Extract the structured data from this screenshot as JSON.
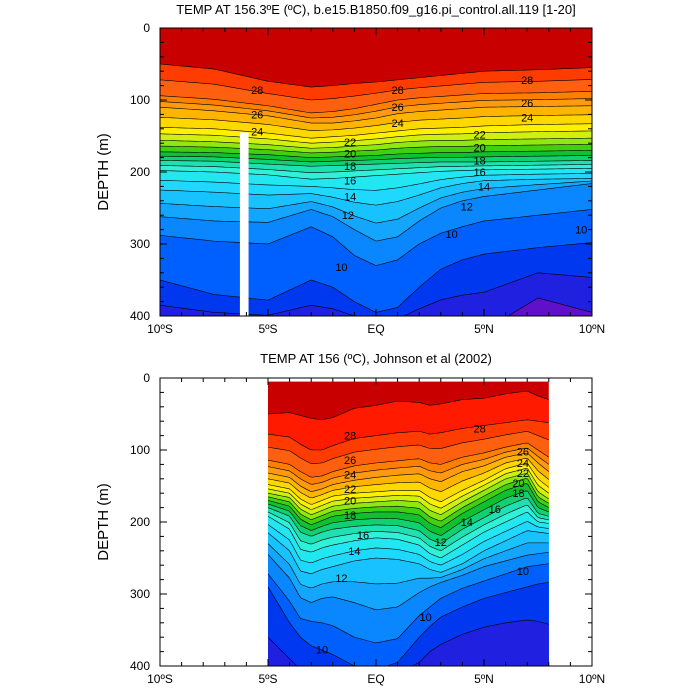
{
  "chart_data": [
    {
      "type": "contour",
      "title": "TEMP AT 156.3ºE (ºC), b.e15.B1850.f09_g16.pi_control.all.119 [1-20]",
      "ylabel": "DEPTH (m)",
      "xlim": [
        -10,
        10
      ],
      "ylim": [
        400,
        0
      ],
      "x_ticks": [
        {
          "value": -10,
          "label": "10ºS"
        },
        {
          "value": -5,
          "label": "5ºS"
        },
        {
          "value": 0,
          "label": "EQ"
        },
        {
          "value": 5,
          "label": "5ºN"
        },
        {
          "value": 10,
          "label": "10ºN"
        }
      ],
      "y_ticks": [
        {
          "value": 0,
          "label": "0"
        },
        {
          "value": 100,
          "label": "100"
        },
        {
          "value": 200,
          "label": "200"
        },
        {
          "value": 300,
          "label": "300"
        },
        {
          "value": 400,
          "label": "400"
        }
      ],
      "data_xrange": [
        -10,
        10
      ],
      "missing_strip": {
        "x": [
          -6.3,
          -5.9
        ],
        "depth": [
          145,
          400
        ]
      },
      "contour_levels": [
        4,
        5,
        6,
        7,
        8,
        9,
        10,
        11,
        12,
        13,
        14,
        15,
        16,
        17,
        18,
        19,
        20,
        21,
        22,
        23,
        24,
        25,
        26,
        27,
        28,
        29
      ],
      "isotherm_depths": {
        "x": [
          -10,
          -7.5,
          -5,
          -3,
          -2,
          -1,
          0,
          1,
          2,
          3,
          4,
          5,
          7.5,
          10
        ],
        "28": [
          50,
          57,
          74,
          82,
          80,
          77,
          75,
          72,
          69,
          66,
          63,
          60,
          58,
          55
        ],
        "26": [
          94,
          99,
          108,
          118,
          116,
          112,
          106,
          100,
          97,
          95,
          93,
          91,
          90,
          88
        ],
        "24": [
          110,
          115,
          122,
          132,
          132,
          129,
          125,
          119,
          116,
          114,
          112,
          110,
          109,
          108
        ],
        "22": [
          138,
          140,
          146,
          153,
          151,
          149,
          146,
          143,
          140,
          139,
          138,
          136,
          134,
          133
        ],
        "20": [
          156,
          158,
          162,
          167,
          166,
          164,
          162,
          159,
          157,
          156,
          156,
          155,
          154,
          153
        ],
        "18": [
          172,
          173,
          176,
          180,
          179,
          178,
          177,
          175,
          174,
          173,
          173,
          172,
          171,
          170
        ],
        "16": [
          184,
          185,
          189,
          192,
          191,
          190,
          189,
          188,
          187,
          186,
          186,
          186,
          185,
          184
        ],
        "14": [
          198,
          200,
          204,
          210,
          209,
          207,
          205,
          203,
          201,
          199,
          198,
          197,
          196,
          195
        ],
        "12": [
          225,
          228,
          232,
          230,
          235,
          242,
          246,
          241,
          232,
          222,
          216,
          212,
          210,
          209
        ],
        "10": [
          262,
          268,
          270,
          252,
          262,
          280,
          296,
          290,
          268,
          250,
          240,
          234,
          225,
          216
        ],
        "9": [
          288,
          296,
          300,
          276,
          290,
          316,
          330,
          322,
          300,
          285,
          276,
          268,
          260,
          252
        ],
        "8": [
          350,
          370,
          378,
          350,
          360,
          380,
          395,
          388,
          360,
          335,
          322,
          314,
          305,
          298
        ],
        "6": [
          420,
          420,
          420,
          420,
          420,
          420,
          420,
          420,
          420,
          420,
          420,
          420,
          375,
          395
        ]
      },
      "contour_labels": [
        {
          "x": -5.5,
          "depth": 86,
          "text": "28"
        },
        {
          "x": 1.0,
          "depth": 86,
          "text": "28"
        },
        {
          "x": 7.0,
          "depth": 72,
          "text": "28"
        },
        {
          "x": -5.5,
          "depth": 120,
          "text": "26"
        },
        {
          "x": 1.0,
          "depth": 110,
          "text": "26"
        },
        {
          "x": 7.0,
          "depth": 104,
          "text": "26"
        },
        {
          "x": -5.5,
          "depth": 144,
          "text": "24"
        },
        {
          "x": 1.0,
          "depth": 132,
          "text": "24"
        },
        {
          "x": 7.0,
          "depth": 124,
          "text": "24"
        },
        {
          "x": -1.2,
          "depth": 158,
          "text": "22"
        },
        {
          "x": 4.8,
          "depth": 148,
          "text": "22"
        },
        {
          "x": -1.2,
          "depth": 174,
          "text": "20"
        },
        {
          "x": 4.8,
          "depth": 166,
          "text": "20"
        },
        {
          "x": -1.2,
          "depth": 192,
          "text": "18"
        },
        {
          "x": 4.8,
          "depth": 184,
          "text": "18"
        },
        {
          "x": -1.2,
          "depth": 212,
          "text": "16"
        },
        {
          "x": 4.8,
          "depth": 200,
          "text": "16"
        },
        {
          "x": -1.2,
          "depth": 234,
          "text": "14"
        },
        {
          "x": 5.0,
          "depth": 220,
          "text": "14"
        },
        {
          "x": -1.3,
          "depth": 260,
          "text": "12"
        },
        {
          "x": 4.2,
          "depth": 248,
          "text": "12"
        },
        {
          "x": 3.5,
          "depth": 286,
          "text": "10"
        },
        {
          "x": 9.5,
          "depth": 280,
          "text": "10"
        },
        {
          "x": -1.6,
          "depth": 332,
          "text": "10"
        }
      ]
    },
    {
      "type": "contour",
      "title": "TEMP AT 156 (ºC), Johnson et al (2002)",
      "ylabel": "DEPTH (m)",
      "xlim": [
        -10,
        10
      ],
      "ylim": [
        400,
        0
      ],
      "x_ticks": [
        {
          "value": -10,
          "label": "10ºS"
        },
        {
          "value": -5,
          "label": "5ºS"
        },
        {
          "value": 0,
          "label": "EQ"
        },
        {
          "value": 5,
          "label": "5ºN"
        },
        {
          "value": 10,
          "label": "10ºN"
        }
      ],
      "y_ticks": [
        {
          "value": 0,
          "label": "0"
        },
        {
          "value": 100,
          "label": "100"
        },
        {
          "value": 200,
          "label": "200"
        },
        {
          "value": 300,
          "label": "300"
        },
        {
          "value": 400,
          "label": "400"
        }
      ],
      "data_xrange": [
        -5,
        8
      ],
      "data_top_depth": 5,
      "contour_levels": [
        7,
        8,
        9,
        10,
        11,
        12,
        13,
        14,
        15,
        16,
        17,
        18,
        19,
        20,
        21,
        22,
        23,
        24,
        25,
        26,
        27,
        28,
        29
      ],
      "isotherm_depths": {
        "x": [
          -5,
          -4,
          -3.5,
          -3,
          -2.5,
          -2,
          -1,
          0,
          1,
          2,
          2.5,
          3,
          4,
          5,
          6,
          7,
          7.5,
          8
        ],
        "29": [
          50,
          48,
          52,
          56,
          58,
          55,
          42,
          38,
          32,
          34,
          38,
          36,
          30,
          28,
          22,
          18,
          25,
          30
        ],
        "28": [
          78,
          82,
          92,
          100,
          100,
          94,
          84,
          80,
          76,
          74,
          78,
          76,
          70,
          66,
          62,
          58,
          60,
          62
        ],
        "26": [
          114,
          120,
          130,
          138,
          136,
          130,
          122,
          118,
          115,
          112,
          118,
          120,
          110,
          104,
          96,
          90,
          100,
          110
        ],
        "24": [
          132,
          138,
          150,
          158,
          154,
          148,
          142,
          138,
          135,
          133,
          140,
          144,
          130,
          122,
          110,
          104,
          118,
          130
        ],
        "22": [
          148,
          154,
          168,
          176,
          170,
          164,
          160,
          158,
          156,
          156,
          166,
          172,
          156,
          142,
          126,
          118,
          140,
          152
        ],
        "20": [
          160,
          166,
          182,
          190,
          184,
          178,
          174,
          172,
          170,
          172,
          184,
          190,
          172,
          156,
          140,
          132,
          158,
          168
        ],
        "18": [
          170,
          178,
          196,
          204,
          198,
          192,
          188,
          186,
          186,
          190,
          202,
          208,
          188,
          172,
          156,
          146,
          172,
          180
        ],
        "16": [
          180,
          192,
          214,
          220,
          214,
          210,
          206,
          204,
          205,
          212,
          224,
          230,
          210,
          194,
          178,
          166,
          188,
          192
        ],
        "14": [
          192,
          210,
          238,
          242,
          236,
          232,
          226,
          222,
          224,
          232,
          244,
          250,
          232,
          214,
          200,
          186,
          200,
          202
        ],
        "12": [
          215,
          240,
          268,
          272,
          266,
          262,
          254,
          250,
          252,
          258,
          266,
          270,
          258,
          240,
          226,
          212,
          214,
          216
        ],
        "10": [
          245,
          278,
          305,
          312,
          306,
          304,
          312,
          322,
          318,
          298,
          290,
          284,
          274,
          262,
          254,
          246,
          244,
          242
        ],
        "9": [
          272,
          310,
          334,
          338,
          340,
          344,
          360,
          368,
          362,
          330,
          318,
          306,
          292,
          282,
          272,
          262,
          260,
          258
        ],
        "8": [
          290,
          340,
          360,
          372,
          378,
          384,
          400,
          405,
          395,
          360,
          345,
          332,
          318,
          306,
          298,
          290,
          286,
          284
        ],
        "7": [
          360,
          390,
          405,
          410,
          410,
          410,
          410,
          410,
          410,
          395,
          380,
          370,
          356,
          346,
          340,
          336,
          338,
          342
        ]
      },
      "contour_labels": [
        {
          "x": -1.2,
          "depth": 80,
          "text": "28"
        },
        {
          "x": 4.8,
          "depth": 70,
          "text": "28"
        },
        {
          "x": -1.2,
          "depth": 114,
          "text": "26"
        },
        {
          "x": 6.8,
          "depth": 102,
          "text": "26"
        },
        {
          "x": -1.2,
          "depth": 134,
          "text": "24"
        },
        {
          "x": 6.8,
          "depth": 118,
          "text": "24"
        },
        {
          "x": -1.2,
          "depth": 154,
          "text": "22"
        },
        {
          "x": 6.8,
          "depth": 132,
          "text": "22"
        },
        {
          "x": -1.2,
          "depth": 170,
          "text": "20"
        },
        {
          "x": 6.6,
          "depth": 146,
          "text": "20"
        },
        {
          "x": -1.2,
          "depth": 190,
          "text": "18"
        },
        {
          "x": 6.6,
          "depth": 160,
          "text": "18"
        },
        {
          "x": -0.6,
          "depth": 218,
          "text": "16"
        },
        {
          "x": 5.5,
          "depth": 182,
          "text": "16"
        },
        {
          "x": -1.0,
          "depth": 240,
          "text": "14"
        },
        {
          "x": 4.2,
          "depth": 200,
          "text": "14"
        },
        {
          "x": 3.0,
          "depth": 228,
          "text": "12"
        },
        {
          "x": -1.6,
          "depth": 278,
          "text": "12"
        },
        {
          "x": 6.8,
          "depth": 268,
          "text": "10"
        },
        {
          "x": 2.3,
          "depth": 332,
          "text": "10"
        },
        {
          "x": -2.5,
          "depth": 377,
          "text": "10"
        }
      ]
    }
  ]
}
